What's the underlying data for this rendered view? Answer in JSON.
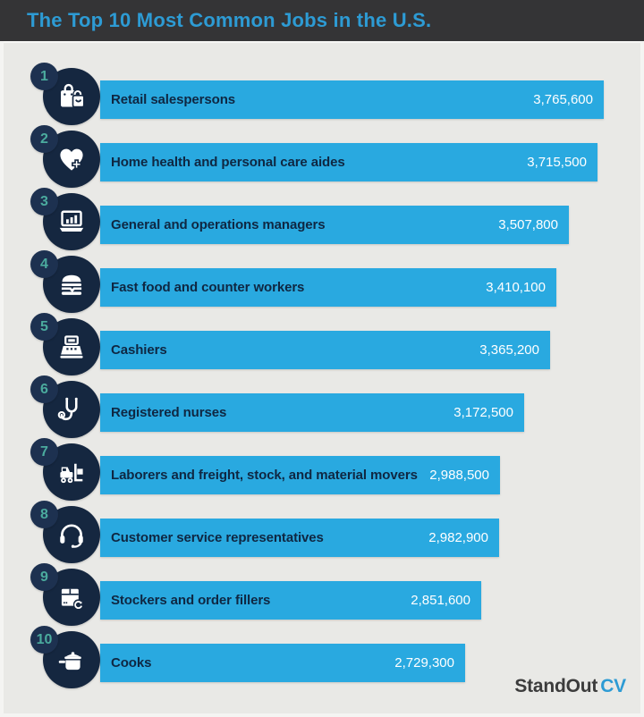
{
  "header": {
    "title": "The Top 10 Most Common Jobs in the U.S."
  },
  "brand": {
    "name_dark": "StandOut",
    "name_accent": "CV"
  },
  "colors": {
    "header_bg": "#343436",
    "title_text": "#2d9bd4",
    "page_bg": "#e9e9e6",
    "frame_bg": "#f4f4f2",
    "bar_fill": "#29a9e0",
    "icon_circle": "#152740",
    "badge_circle": "#1d3150",
    "badge_text": "#4bab9e",
    "label_text": "#0f2742",
    "value_text": "#ffffff",
    "brand_dark": "#3c3c3c",
    "brand_accent": "#2d9bd4"
  },
  "chart_data": {
    "type": "bar",
    "orientation": "horizontal",
    "title": "The Top 10 Most Common Jobs in the U.S.",
    "xlim": [
      0,
      3765600
    ],
    "grid": false,
    "legend": false,
    "ranks": [
      1,
      2,
      3,
      4,
      5,
      6,
      7,
      8,
      9,
      10
    ],
    "categories": [
      "Retail salespersons",
      "Home health and personal care aides",
      "General and operations managers",
      "Fast food and counter workers",
      "Cashiers",
      "Registered nurses",
      "Laborers and freight, stock, and material movers",
      "Customer service representatives",
      "Stockers and order fillers",
      "Cooks"
    ],
    "values": [
      3765600,
      3715500,
      3507800,
      3410100,
      3365200,
      3172500,
      2988500,
      2982900,
      2851600,
      2729300
    ],
    "value_labels": [
      "3,765,600",
      "3,715,500",
      "3,507,800",
      "3,410,100",
      "3,365,200",
      "3,172,500",
      "2,988,500",
      "2,982,900",
      "2,851,600",
      "2,729,300"
    ],
    "icons": [
      "shopping-bags",
      "heart-medical-cross",
      "laptop-bar-chart",
      "burger",
      "cash-register",
      "stethoscope",
      "forklift",
      "headset",
      "package-restock",
      "cooking-pot"
    ]
  }
}
